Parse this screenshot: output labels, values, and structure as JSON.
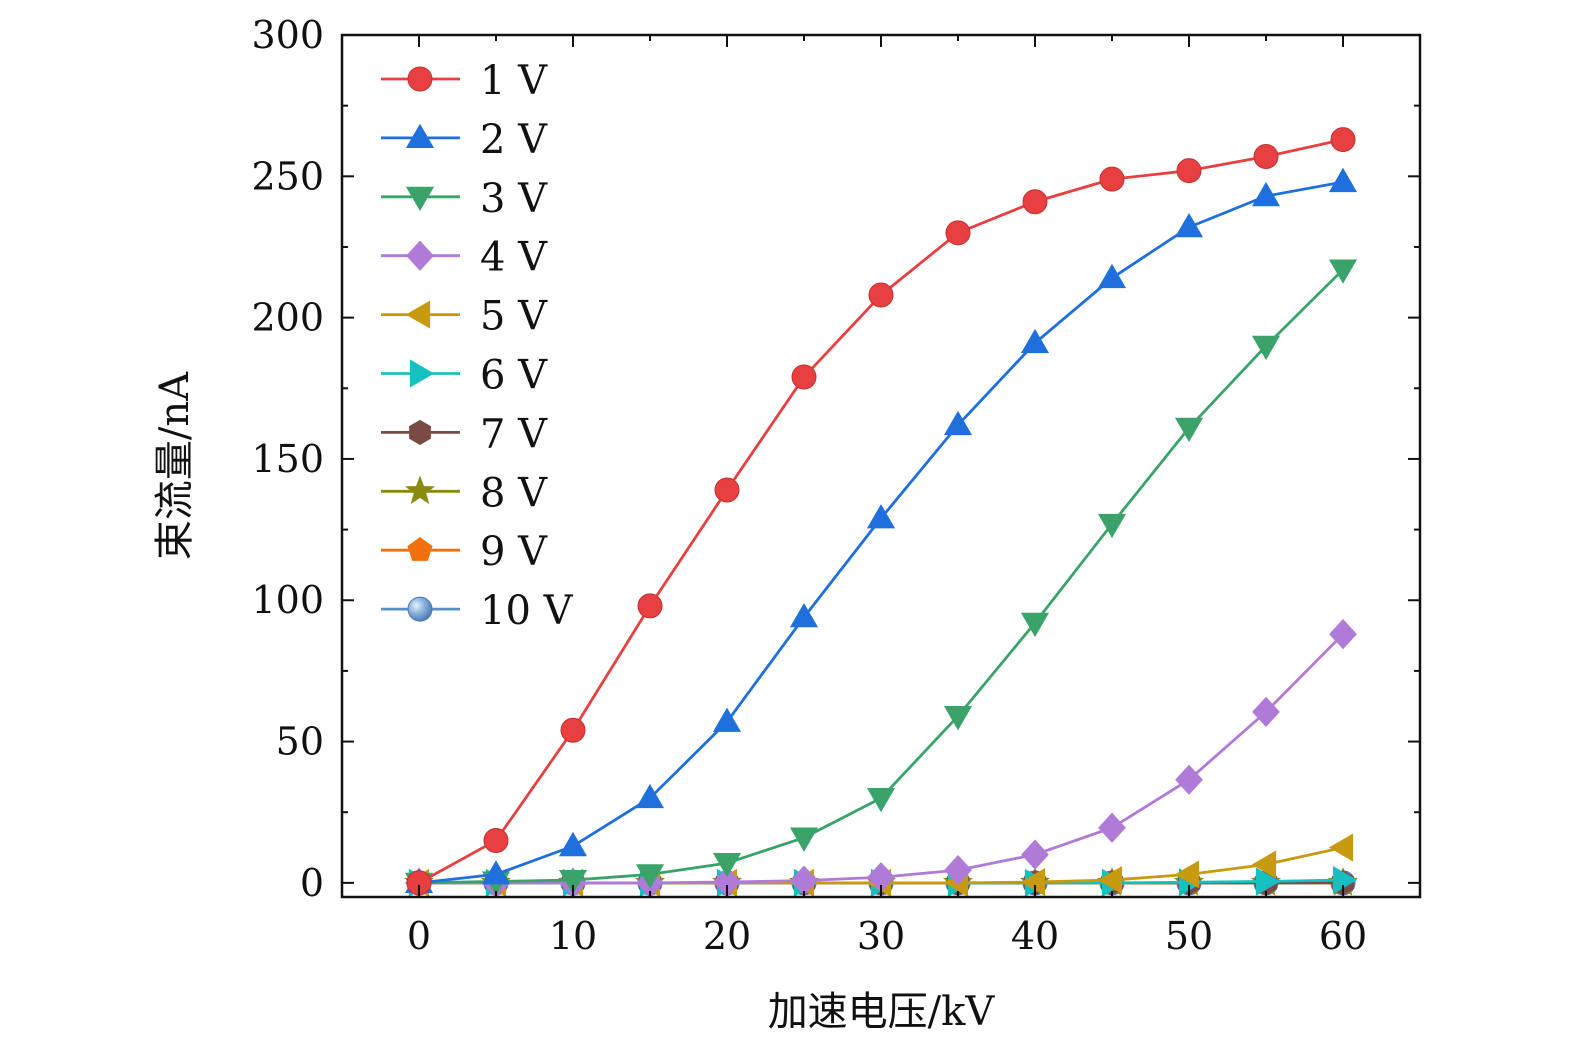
{
  "chart_data": {
    "type": "line",
    "xlabel": "加速电压/kV",
    "ylabel": "束流量/nA",
    "xlim": [
      -5,
      65
    ],
    "ylim": [
      -5,
      300
    ],
    "x_ticks": [
      0,
      10,
      20,
      30,
      40,
      50,
      60
    ],
    "y_ticks": [
      0,
      50,
      100,
      150,
      200,
      250,
      300
    ],
    "grid": false,
    "legend_position": "top-left",
    "x": [
      0,
      5,
      10,
      15,
      20,
      25,
      30,
      35,
      40,
      45,
      50,
      55,
      60
    ],
    "series": [
      {
        "name": "1 V",
        "color": "#e84040",
        "marker": "circle",
        "values": [
          0,
          15,
          54,
          98,
          139,
          179,
          208,
          230,
          241,
          249,
          252,
          257,
          263
        ]
      },
      {
        "name": "2 V",
        "color": "#1f6fdc",
        "marker": "triangle-up",
        "values": [
          0,
          3,
          13,
          30,
          57,
          94,
          129,
          162,
          191,
          214,
          232,
          243,
          248
        ]
      },
      {
        "name": "3 V",
        "color": "#3aa36a",
        "marker": "triangle-down",
        "values": [
          0,
          0.5,
          1,
          3,
          7,
          16,
          30,
          59,
          92,
          127,
          161,
          190,
          217
        ]
      },
      {
        "name": "4 V",
        "color": "#b07ad8",
        "marker": "diamond",
        "values": [
          0,
          0,
          0,
          0,
          0.3,
          0.8,
          2,
          4.5,
          10,
          19.5,
          36.5,
          60.5,
          88
        ]
      },
      {
        "name": "5 V",
        "color": "#c89a10",
        "marker": "triangle-left",
        "values": [
          0,
          0,
          0,
          0,
          0,
          0,
          0,
          0,
          0.3,
          1,
          3,
          6.5,
          12.5
        ]
      },
      {
        "name": "6 V",
        "color": "#17c0c0",
        "marker": "triangle-right",
        "values": [
          0,
          0,
          0,
          0,
          0,
          0,
          0,
          0,
          0,
          0,
          0.2,
          0.5,
          1
        ]
      },
      {
        "name": "7 V",
        "color": "#7a4a44",
        "marker": "hexagon",
        "values": [
          0,
          0,
          0,
          0,
          0,
          0,
          0,
          0,
          0,
          0,
          0,
          0,
          0
        ]
      },
      {
        "name": "8 V",
        "color": "#8a8a10",
        "marker": "star",
        "values": [
          0,
          0,
          0,
          0,
          0,
          0,
          0,
          0,
          0,
          0,
          0,
          0,
          0
        ]
      },
      {
        "name": "9 V",
        "color": "#f07010",
        "marker": "pentagon",
        "values": [
          0,
          0,
          0,
          0,
          0,
          0,
          0,
          0,
          0,
          0,
          0,
          0,
          0
        ]
      },
      {
        "name": "10 V",
        "color": "#5b8fc8",
        "marker": "sphere",
        "values": [
          0,
          0,
          0,
          0,
          0,
          0,
          0,
          0,
          0,
          0,
          0,
          0,
          0
        ]
      }
    ]
  }
}
